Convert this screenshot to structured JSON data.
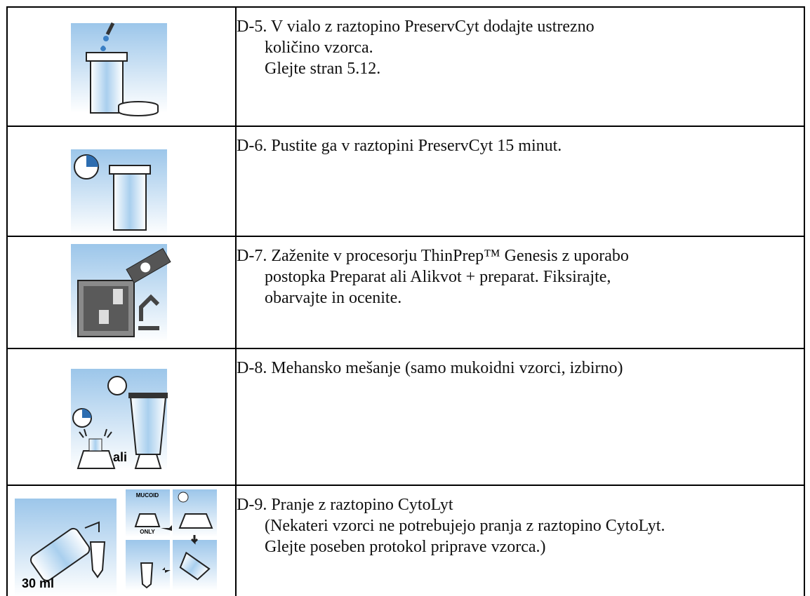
{
  "rows": [
    {
      "lines": [
        "D-5. V vialo z raztopino PreservCyt dodajte ustrezno",
        "količino vzorca.",
        "Glejte stran 5.12."
      ]
    },
    {
      "lines": [
        "D-6. Pustite ga v raztopini PreservCyt 15 minut."
      ]
    },
    {
      "lines": [
        "D-7. Zaženite v procesorju ThinPrep™ Genesis z uporabo",
        "postopka Preparat ali Alikvot + preparat. Fiksirajte,",
        "obarvajte in ocenite."
      ]
    },
    {
      "lines": [
        "D-8. Mehansko mešanje (samo mukoidni vzorci, izbirno)"
      ],
      "icon_label": "ali"
    },
    {
      "lines": [
        "D-9. Pranje z raztopino CytoLyt",
        "(Nekateri vzorci ne potrebujejo pranja z raztopino CytoLyt.",
        "Glejte poseben protokol priprave vzorca.)"
      ],
      "icon_volume": "30 ml",
      "icon_top": "MUCOID",
      "icon_bottom": "ONLY"
    }
  ]
}
